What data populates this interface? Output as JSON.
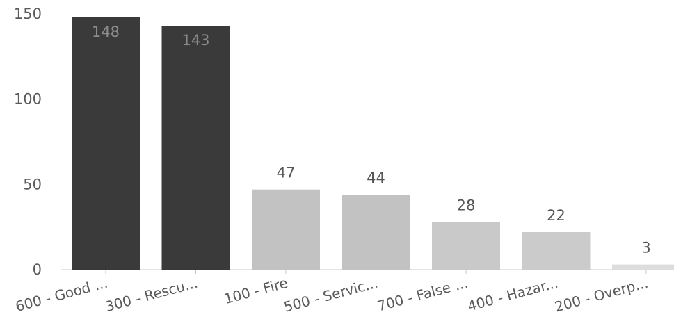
{
  "chart_data": {
    "type": "bar",
    "title": "",
    "xlabel": "",
    "ylabel": "",
    "ylim": [
      0,
      150
    ],
    "yticks": [
      0,
      50,
      100,
      150
    ],
    "grid": false,
    "categories": [
      "600 - Good ...",
      "300 - Rescu...",
      "100 - Fire",
      "500 - Servic...",
      "700 - False ...",
      "400 - Hazar...",
      "200 - Overp..."
    ],
    "values": [
      148,
      143,
      47,
      44,
      28,
      22,
      3
    ],
    "bar_colors": [
      "#3a3a3a",
      "#3a3a3a",
      "#c2c2c2",
      "#c2c2c2",
      "#c9c9c9",
      "#cbcbcb",
      "#dddddd"
    ],
    "label_positions": [
      "inside",
      "inside",
      "above",
      "above",
      "above",
      "above",
      "above"
    ],
    "colors": {
      "inside_label": "#8c8c8c",
      "outside_label": "#555555",
      "axis": "#c8c8c8",
      "text": "#5a5a5a"
    }
  }
}
